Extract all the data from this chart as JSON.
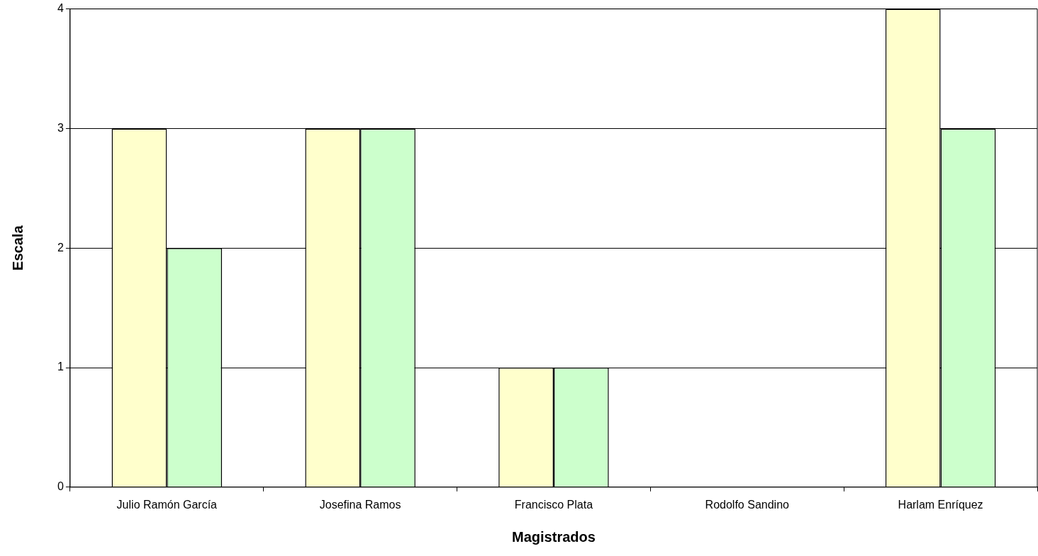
{
  "chart_data": {
    "type": "bar",
    "xlabel": "Magistrados",
    "ylabel": "Escala",
    "categories": [
      "Julio Ramón García",
      "Josefina Ramos",
      "Francisco Plata",
      "Rodolfo Sandino",
      "Harlam Enríquez"
    ],
    "series": [
      {
        "color": "#ffffcc",
        "values": [
          3,
          3,
          1,
          0,
          4
        ]
      },
      {
        "color": "#ccffcc",
        "values": [
          2,
          3,
          1,
          0,
          3
        ]
      }
    ],
    "ylim": [
      0,
      4
    ],
    "yticks": [
      0,
      1,
      2,
      3,
      4
    ],
    "grid": "y",
    "legend": false
  }
}
